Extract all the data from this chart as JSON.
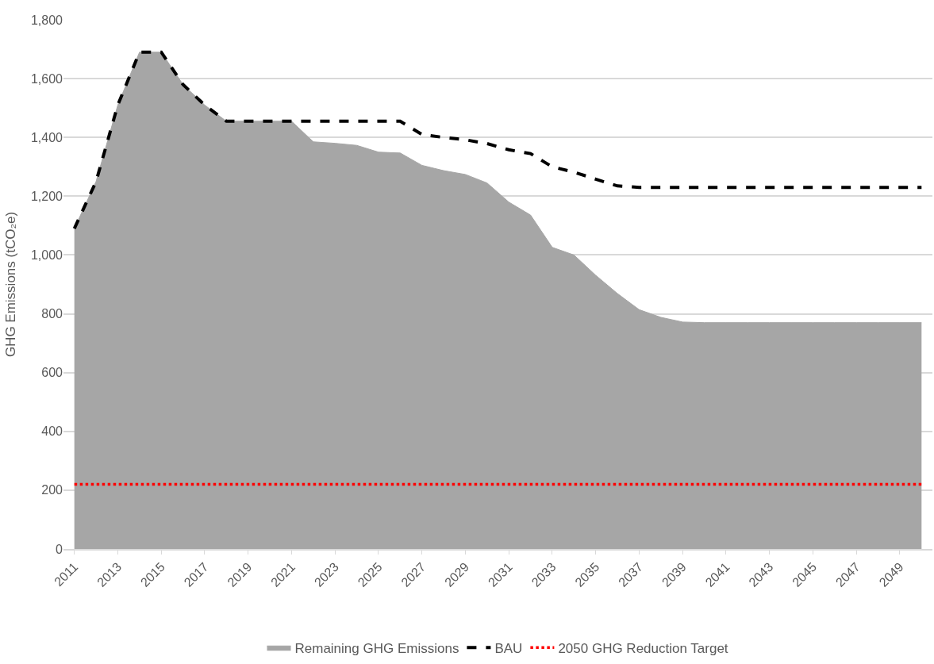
{
  "chart_data": {
    "type": "area",
    "ylabel": "GHG Emissions (tCO₂e)",
    "categories": [
      "2011",
      null,
      "2013",
      null,
      "2015",
      null,
      "2017",
      null,
      "2019",
      null,
      "2021",
      null,
      "2023",
      null,
      "2025",
      null,
      "2027",
      null,
      "2029",
      null,
      "2031",
      null,
      "2033",
      null,
      "2035",
      null,
      "2037",
      null,
      "2039",
      null,
      "2041",
      null,
      "2043",
      null,
      "2045",
      null,
      "2047",
      null,
      "2049",
      null
    ],
    "series": [
      {
        "name": "Remaining GHG Emissions",
        "color": "#a6a6a6",
        "values": [
          1090,
          1250,
          1510,
          1690,
          1690,
          1580,
          1510,
          1455,
          1455,
          1455,
          1455,
          1385,
          1380,
          1373,
          1350,
          1347,
          1305,
          1287,
          1274,
          1245,
          1180,
          1136,
          1026,
          1000,
          931,
          869,
          814,
          788,
          772,
          770,
          770,
          770,
          770,
          770,
          770,
          770,
          770,
          770,
          770,
          770
        ]
      },
      {
        "name": "BAU",
        "type": "line",
        "color": "#000000",
        "line_style": "dashed",
        "values": [
          1090,
          1250,
          1510,
          1690,
          1690,
          1580,
          1510,
          1455,
          1455,
          1455,
          1455,
          1455,
          1455,
          1455,
          1455,
          1455,
          1410,
          1400,
          1392,
          1379,
          1358,
          1345,
          1300,
          1282,
          1258,
          1235,
          1230,
          1230,
          1230,
          1230,
          1230,
          1230,
          1230,
          1230,
          1230,
          1230,
          1230,
          1230,
          1230,
          1230
        ]
      },
      {
        "name": "2050 GHG Reduction Target",
        "type": "line",
        "color": "#ff0000",
        "line_style": "dotted",
        "values": [
          220,
          220,
          220,
          220,
          220,
          220,
          220,
          220,
          220,
          220,
          220,
          220,
          220,
          220,
          220,
          220,
          220,
          220,
          220,
          220,
          220,
          220,
          220,
          220,
          220,
          220,
          220,
          220,
          220,
          220,
          220,
          220,
          220,
          220,
          220,
          220,
          220,
          220,
          220,
          220
        ]
      }
    ],
    "ylim": [
      0,
      1800
    ],
    "yticks": [
      0,
      200,
      400,
      600,
      800,
      {
        "value": 1000,
        "label": "1,000"
      },
      {
        "value": 1200,
        "label": "1,200"
      },
      {
        "value": 1400,
        "label": "1,400"
      },
      {
        "value": 1600,
        "label": "1,600"
      },
      {
        "value": 1800,
        "label": "1,800"
      }
    ],
    "grid": "y",
    "legend": "bottom"
  }
}
